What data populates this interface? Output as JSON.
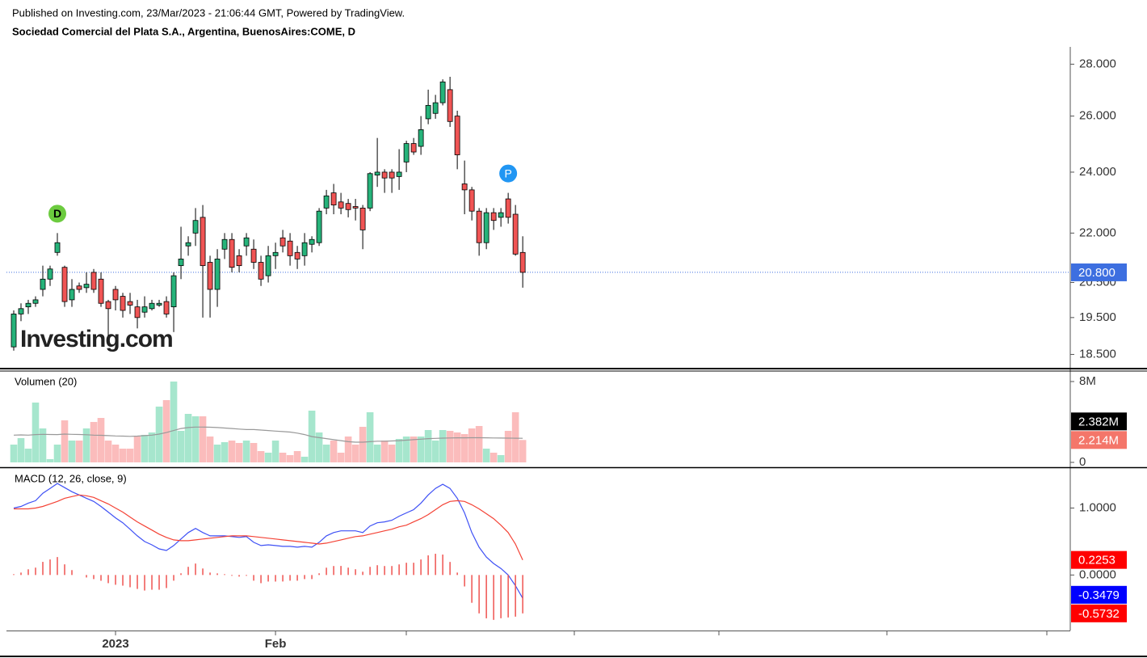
{
  "chart_data": [
    {
      "type": "candlestick",
      "source": "Published on Investing.com, 23/Mar/2023 - 21:06:44 GMT, Powered by TradingView.",
      "title": "Sociedad Comercial del Plata S.A., Argentina, BuenosAires:COME, D",
      "watermark": "Investing.com",
      "open": [
        18.7,
        19.6,
        19.8,
        19.9,
        20.3,
        20.6,
        21.4,
        20.95,
        20.0,
        20.4,
        20.35,
        20.8,
        20.6,
        19.95,
        20.3,
        20.1,
        19.95,
        19.8,
        19.65,
        19.75,
        19.85,
        19.95,
        19.8,
        21.0,
        21.6,
        22.0,
        22.5,
        21.1,
        20.3,
        21.5,
        21.8,
        21.3,
        21.6,
        21.5,
        21.1,
        20.7,
        21.3,
        21.85,
        21.75,
        21.4,
        21.3,
        21.65,
        21.7,
        22.8,
        23.3,
        23.0,
        22.95,
        22.85,
        22.8,
        22.8,
        23.9,
        24.0,
        24.0,
        23.85,
        24.35,
        25.0,
        24.9,
        25.9,
        26.1,
        26.5,
        27.0,
        26.0,
        23.6,
        23.4,
        22.7,
        21.7,
        22.65,
        22.5,
        23.1,
        22.6,
        21.4
      ],
      "high": [
        19.7,
        19.9,
        20.0,
        20.1,
        21.0,
        21.0,
        22.0,
        21.0,
        20.6,
        20.5,
        20.8,
        20.9,
        20.8,
        20.0,
        20.4,
        20.2,
        20.2,
        20.0,
        20.1,
        20.0,
        20.0,
        20.1,
        20.8,
        22.2,
        21.9,
        22.8,
        22.9,
        21.3,
        21.5,
        22.0,
        22.0,
        21.5,
        22.0,
        21.8,
        21.3,
        21.6,
        21.7,
        22.1,
        22.0,
        21.6,
        22.0,
        21.9,
        22.8,
        23.4,
        23.6,
        23.3,
        23.1,
        23.1,
        22.9,
        24.0,
        25.2,
        24.1,
        24.1,
        24.8,
        25.1,
        25.2,
        26.0,
        27.0,
        26.8,
        27.4,
        27.5,
        26.2,
        24.4,
        23.5,
        22.8,
        22.8,
        22.8,
        22.8,
        23.3,
        22.9,
        21.9
      ],
      "low": [
        18.6,
        19.4,
        19.6,
        19.8,
        20.1,
        20.4,
        21.3,
        19.8,
        19.8,
        20.2,
        20.2,
        20.2,
        19.8,
        19.0,
        19.7,
        19.5,
        19.6,
        19.2,
        19.5,
        19.7,
        19.8,
        19.5,
        19.1,
        20.6,
        21.3,
        21.6,
        19.5,
        19.5,
        19.8,
        21.2,
        20.8,
        20.8,
        21.3,
        20.9,
        20.4,
        20.5,
        20.9,
        21.4,
        21.0,
        20.9,
        21.0,
        21.4,
        21.6,
        22.6,
        22.6,
        22.6,
        22.5,
        22.4,
        21.5,
        22.7,
        23.5,
        23.3,
        23.3,
        23.4,
        24.0,
        24.6,
        24.6,
        25.7,
        25.9,
        26.4,
        25.6,
        24.1,
        22.6,
        22.4,
        21.3,
        21.5,
        22.1,
        22.2,
        22.3,
        21.3,
        20.35
      ],
      "close": [
        19.6,
        19.75,
        19.9,
        20.0,
        20.6,
        20.9,
        21.7,
        19.95,
        20.3,
        20.3,
        20.45,
        20.3,
        19.9,
        19.75,
        20.0,
        19.7,
        19.85,
        19.5,
        19.8,
        19.9,
        19.9,
        19.6,
        20.7,
        21.2,
        21.7,
        22.4,
        21.0,
        20.3,
        21.2,
        21.8,
        20.95,
        21.0,
        21.85,
        21.1,
        20.6,
        21.3,
        21.4,
        21.6,
        21.3,
        21.2,
        21.7,
        21.8,
        22.7,
        23.2,
        22.9,
        22.8,
        22.75,
        22.8,
        22.1,
        23.95,
        24.0,
        23.8,
        23.8,
        24.0,
        25.0,
        24.7,
        25.5,
        26.4,
        26.5,
        27.3,
        25.8,
        24.6,
        23.4,
        22.7,
        21.7,
        22.65,
        22.4,
        22.65,
        22.5,
        21.35,
        20.8
      ],
      "up_color": "#26b37a",
      "down_color": "#f05454",
      "last_label": "20.800",
      "last_label_color": "#3d6fe0",
      "events": [
        {
          "label": "D",
          "x": 6,
          "color": "#6ccb3f"
        },
        {
          "label": "P",
          "x": 68,
          "color": "#2196f3"
        }
      ],
      "log_scale": true,
      "xlim": [
        -1,
        145.3
      ],
      "ylim": [
        18.15,
        28.7
      ],
      "yticks": [
        {
          "value": 18.5,
          "label": "18.500"
        },
        {
          "value": 19.5,
          "label": "19.500"
        },
        {
          "value": 20.5,
          "label": "20.500"
        },
        {
          "value": 22,
          "label": "22.000"
        },
        {
          "value": 24,
          "label": "24.000"
        },
        {
          "value": 26,
          "label": "26.000"
        },
        {
          "value": 28,
          "label": "28.000"
        }
      ]
    },
    {
      "type": "bar",
      "title": "Volumen (20)",
      "series": [
        {
          "type": "bar",
          "up_color": "#a6e6cd",
          "down_color": "#fbbcbc",
          "label_color": "#f4766a",
          "last_label": "2.214M",
          "values": [
            1760000,
            2400000,
            1360000,
            5920000,
            3360000,
            320000,
            1760000,
            4160000,
            2160000,
            2160000,
            3360000,
            4000000,
            4400000,
            2160000,
            1760000,
            1360000,
            1360000,
            2560000,
            2720000,
            2960000,
            5520000,
            6160000,
            8000000,
            3120000,
            4800000,
            4560000,
            4560000,
            2560000,
            1760000,
            2000000,
            2160000,
            1920000,
            2160000,
            1920000,
            1120000,
            960000,
            2160000,
            960000,
            720000,
            1120000,
            560000,
            5120000,
            2960000,
            1760000,
            2160000,
            960000,
            2560000,
            1760000,
            3520000,
            4960000,
            1760000,
            2160000,
            1760000,
            2320000,
            2560000,
            2560000,
            2560000,
            3200000,
            2160000,
            3200000,
            3120000,
            2960000,
            2800000,
            3360000,
            3600000,
            1360000,
            960000,
            720000,
            3120000,
            4960000,
            2214000
          ]
        },
        {
          "type": "line",
          "color": "#999999",
          "label_color": "#000000",
          "last_label": "2.382M",
          "values": [
            2700000,
            2720000,
            2700000,
            2750000,
            2780000,
            2760000,
            2750000,
            2800000,
            2780000,
            2760000,
            2740000,
            2700000,
            2680000,
            2650000,
            2620000,
            2600000,
            2580000,
            2600000,
            2650000,
            2700000,
            2800000,
            2950000,
            3150000,
            3350000,
            3450000,
            3500000,
            3500000,
            3480000,
            3450000,
            3400000,
            3350000,
            3300000,
            3250000,
            3250000,
            3200000,
            3150000,
            3100000,
            3050000,
            3000000,
            2900000,
            2750000,
            2550000,
            2450000,
            2350000,
            2250000,
            2150000,
            2050000,
            2000000,
            2000000,
            2050000,
            2100000,
            2100000,
            2120000,
            2150000,
            2200000,
            2250000,
            2300000,
            2350000,
            2380000,
            2400000,
            2420000,
            2430000,
            2430000,
            2440000,
            2440000,
            2430000,
            2420000,
            2410000,
            2400000,
            2390000,
            2382000
          ]
        }
      ],
      "xlim": [
        -1,
        145.3
      ],
      "ylim": [
        -480000,
        8960000
      ],
      "yticks": [
        0,
        {
          "value": 8000000,
          "label": "8M"
        }
      ]
    },
    {
      "type": "macd",
      "title": "MACD (12, 26, close, 9)",
      "series": [
        {
          "type": "line",
          "color": "#3f51f5",
          "label_color": "#0000ff",
          "last_label": "-0.3479",
          "values": [
            1.0,
            1.024,
            1.073,
            1.11,
            1.22,
            1.293,
            1.366,
            1.305,
            1.244,
            1.195,
            1.146,
            1.098,
            1.024,
            0.939,
            0.854,
            0.78,
            0.683,
            0.585,
            0.5,
            0.451,
            0.39,
            0.366,
            0.439,
            0.537,
            0.634,
            0.695,
            0.634,
            0.585,
            0.585,
            0.585,
            0.573,
            0.561,
            0.573,
            0.488,
            0.439,
            0.451,
            0.439,
            0.427,
            0.427,
            0.415,
            0.427,
            0.415,
            0.488,
            0.585,
            0.634,
            0.659,
            0.659,
            0.659,
            0.634,
            0.732,
            0.78,
            0.793,
            0.817,
            0.878,
            0.927,
            0.976,
            1.073,
            1.195,
            1.293,
            1.354,
            1.293,
            1.146,
            0.927,
            0.634,
            0.415,
            0.268,
            0.171,
            0.098,
            0,
            -0.159,
            -0.3479
          ]
        },
        {
          "type": "line",
          "color": "#f44336",
          "label_color": "#ff0000",
          "last_label": "0.2253",
          "values": [
            0.988,
            0.988,
            0.988,
            1.0,
            1.024,
            1.061,
            1.098,
            1.146,
            1.171,
            1.195,
            1.183,
            1.159,
            1.11,
            1.061,
            1.0,
            0.939,
            0.866,
            0.793,
            0.732,
            0.671,
            0.61,
            0.561,
            0.524,
            0.512,
            0.512,
            0.524,
            0.537,
            0.549,
            0.561,
            0.573,
            0.585,
            0.585,
            0.585,
            0.573,
            0.561,
            0.549,
            0.537,
            0.524,
            0.512,
            0.5,
            0.488,
            0.476,
            0.463,
            0.476,
            0.5,
            0.524,
            0.549,
            0.573,
            0.585,
            0.61,
            0.634,
            0.659,
            0.683,
            0.72,
            0.744,
            0.793,
            0.841,
            0.902,
            0.976,
            1.049,
            1.098,
            1.11,
            1.098,
            1.049,
            0.988,
            0.915,
            0.841,
            0.744,
            0.634,
            0.463,
            0.2253
          ]
        },
        {
          "type": "histogram",
          "color": "#ef5350",
          "label_color": "#ff0000",
          "last_label": "-0.5732",
          "values": [
            0.012,
            0.036,
            0.085,
            0.11,
            0.196,
            0.232,
            0.268,
            0.159,
            0.073,
            0,
            -0.037,
            -0.061,
            -0.086,
            -0.122,
            -0.146,
            -0.159,
            -0.183,
            -0.208,
            -0.232,
            -0.22,
            -0.22,
            -0.195,
            -0.085,
            0.025,
            0.122,
            0.171,
            0.097,
            0.036,
            0.024,
            0.012,
            -0.012,
            -0.024,
            -0.012,
            -0.085,
            -0.122,
            -0.098,
            -0.098,
            -0.097,
            -0.085,
            -0.085,
            -0.061,
            -0.061,
            0.025,
            0.109,
            0.134,
            0.135,
            0.11,
            0.086,
            0.049,
            0.122,
            0.146,
            0.134,
            0.134,
            0.158,
            0.183,
            0.183,
            0.232,
            0.293,
            0.317,
            0.305,
            0.195,
            0.036,
            -0.171,
            -0.415,
            -0.573,
            -0.647,
            -0.67,
            -0.646,
            -0.634,
            -0.622,
            -0.5732
          ]
        }
      ],
      "xlim": [
        -1,
        145.3
      ],
      "ylim": [
        -0.829,
        1.585
      ],
      "yticks": [
        {
          "value": 0,
          "label": "0.0000"
        },
        {
          "value": 1,
          "label": "1.0000"
        }
      ],
      "xticks": [
        {
          "value": 14,
          "label": "2023"
        },
        {
          "value": 36,
          "label": "Feb"
        }
      ]
    }
  ]
}
